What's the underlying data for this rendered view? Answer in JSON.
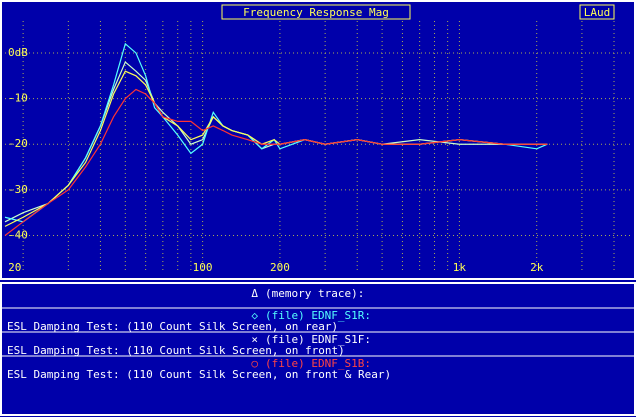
{
  "chart_data": {
    "type": "line",
    "title": "Frequency Response Mag",
    "app_label": "LAud",
    "xscale": "log",
    "grid": true,
    "xlim": [
      17,
      4700
    ],
    "ylim": [
      -48,
      7
    ],
    "xticks": [
      20,
      100,
      200,
      {
        "value": 1000,
        "label": "1k"
      },
      {
        "value": 2000,
        "label": "2k"
      }
    ],
    "x_minor_grid": [
      30,
      40,
      50,
      60,
      70,
      80,
      90,
      300,
      400,
      500,
      600,
      700,
      800,
      900,
      3000,
      4000
    ],
    "yticks": [
      {
        "value": 0,
        "label": "0dB"
      },
      -10,
      -20,
      -30,
      -40
    ],
    "x": [
      17,
      20,
      25,
      30,
      35,
      40,
      45,
      50,
      55,
      60,
      65,
      70,
      80,
      90,
      100,
      110,
      120,
      130,
      150,
      170,
      190,
      200,
      250,
      300,
      400,
      500,
      700,
      1000,
      1500,
      2000,
      2200
    ],
    "series": [
      {
        "symbol": "Δ",
        "name": "(memory trace):",
        "color": "#ccffcc",
        "text_color": "#ffffff",
        "values": [
          -37,
          -35,
          -33,
          -29,
          -23,
          -16,
          -8,
          -2,
          -4,
          -6,
          -11,
          -13,
          -16,
          -20,
          -19,
          -14,
          -16,
          -17,
          -18,
          -21,
          -20,
          -20,
          -19,
          -20,
          -19,
          -20,
          -19,
          -20,
          -20,
          -20,
          -20
        ]
      },
      {
        "symbol": "◇",
        "name": "(file) EDNF_S1R:",
        "color": "#55ffff",
        "text_color": "#55ffff",
        "description": "ESL Damping Test:  (110 Count Silk Screen, on rear)",
        "values": [
          -36,
          -37,
          -33,
          -29,
          -23,
          -16,
          -7,
          2,
          0,
          -5,
          -12,
          -14,
          -18,
          -22,
          -20,
          -13,
          -16,
          -17,
          -18,
          -21,
          -19,
          -21,
          -19,
          -20,
          -19,
          -20,
          -20,
          -19,
          -20,
          -21,
          -20
        ]
      },
      {
        "symbol": "×",
        "name": "(file) EDNF_S1F:",
        "color": "#ffff55",
        "text_color": "#ffffff",
        "description": "ESL Damping Test:  (110 Count Silk Screen, on front)",
        "values": [
          -38,
          -36,
          -33,
          -29,
          -24,
          -17,
          -9,
          -4,
          -5,
          -7,
          -11,
          -14,
          -16,
          -19,
          -18,
          -14,
          -16,
          -17,
          -18,
          -20,
          -19,
          -20,
          -19,
          -20,
          -19,
          -20,
          -20,
          -19,
          -20,
          -20,
          -20
        ]
      },
      {
        "symbol": "○",
        "name": "(file) EDNF_S1B:",
        "color": "#ff3333",
        "text_color": "#ff4444",
        "description": "ESL Damping Test:  (110 Count Silk Screen, on front & Rear)",
        "values": [
          -40,
          -37,
          -33,
          -30,
          -25,
          -20,
          -14,
          -10,
          -8,
          -9,
          -11,
          -14,
          -15,
          -15,
          -17,
          -16,
          -17,
          -18,
          -19,
          -20,
          -20,
          -20,
          -19,
          -20,
          -19,
          -20,
          -20,
          -19,
          -20,
          -20,
          -20
        ]
      }
    ]
  }
}
